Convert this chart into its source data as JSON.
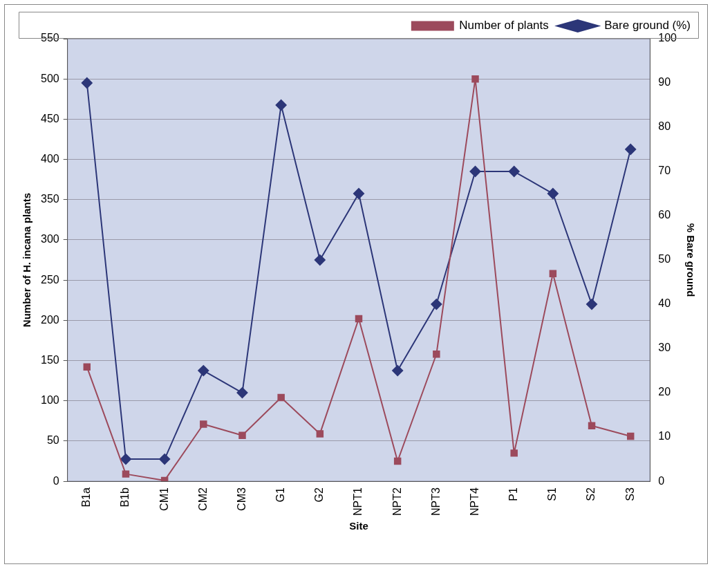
{
  "chart_data": {
    "type": "line",
    "xlabel": "Site",
    "ylabel": "Number of H. incana plants",
    "y2label": "% Bare ground",
    "categories": [
      "B1a",
      "B1b",
      "CM1",
      "CM2",
      "CM3",
      "G1",
      "G2",
      "NPT1",
      "NPT2",
      "NPT3",
      "NPT4",
      "P1",
      "S1",
      "S2",
      "S3"
    ],
    "series": [
      {
        "name": "Number of plants",
        "color": "#9c4a5c",
        "marker": "square",
        "values": [
          142,
          9,
          1,
          71,
          57,
          104,
          59,
          202,
          25,
          158,
          500,
          35,
          258,
          69,
          56
        ]
      },
      {
        "name": "Bare ground (%)",
        "color": "#2c3678",
        "marker": "diamond",
        "axis": "y2",
        "values": [
          90,
          5,
          5,
          25,
          20,
          85,
          50,
          65,
          25,
          40,
          70,
          70,
          65,
          40,
          75
        ]
      }
    ],
    "ylim": [
      0,
      550
    ],
    "yticks": [
      0,
      50,
      100,
      150,
      200,
      250,
      300,
      350,
      400,
      450,
      500,
      550
    ],
    "y2lim": [
      0,
      100
    ],
    "y2ticks": [
      0,
      10,
      20,
      30,
      40,
      50,
      60,
      70,
      80,
      90,
      100
    ],
    "grid": "y",
    "legend": "top right",
    "line_style": "solid"
  }
}
